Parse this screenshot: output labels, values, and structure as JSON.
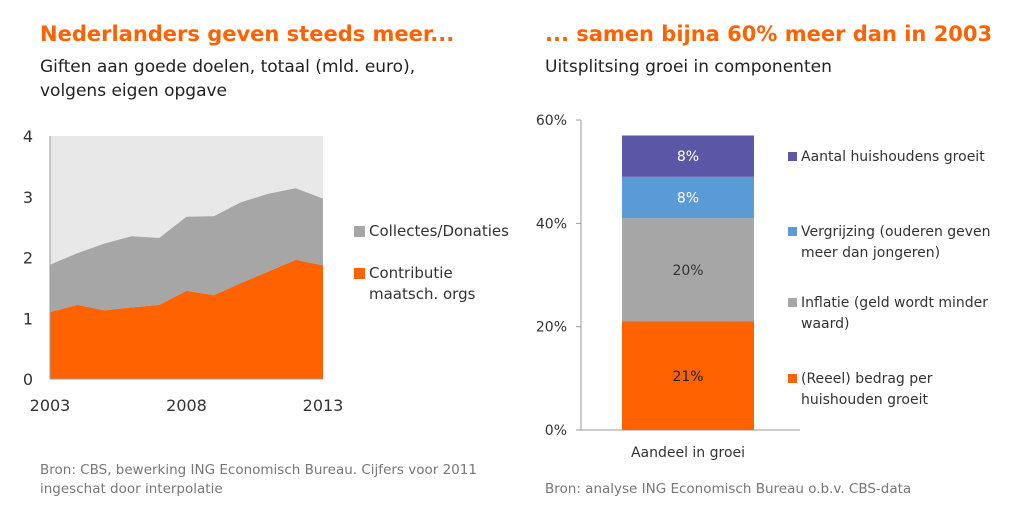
{
  "left": {
    "title": "Nederlanders geven steeds meer...",
    "subtitle_line1": "Giften aan goede doelen, totaal (mld. euro),",
    "subtitle_line2": "volgens eigen opgave",
    "source_line1": "Bron: CBS, bewerking ING Economisch Bureau. Cijfers voor 2011",
    "source_line2": "ingeschat door interpolatie"
  },
  "right": {
    "title": "... samen bijna 60% meer dan in 2003",
    "subtitle": "Uitsplitsing groei in componenten",
    "source": "Bron: analyse ING Economisch Bureau o.b.v. CBS-data"
  },
  "colors": {
    "orange": "#ff6200",
    "gray": "#a6a6a6",
    "blue": "#5b9bd5",
    "purple": "#5b57a6",
    "plot_bg": "#e8e8e8"
  },
  "chart_data": [
    {
      "type": "area",
      "stacked": true,
      "x": [
        2003,
        2004,
        2005,
        2006,
        2007,
        2008,
        2009,
        2010,
        2011,
        2012,
        2013
      ],
      "xticks": [
        "2003",
        "2008",
        "2013"
      ],
      "yticks": [
        "0",
        "1",
        "2",
        "3",
        "4"
      ],
      "ylim": [
        0,
        4
      ],
      "series": [
        {
          "name": "Contributie maatsch. orgs",
          "label_lines": [
            "Contributie",
            "maatsch. orgs"
          ],
          "color": "#ff6200",
          "values": [
            1.1,
            1.22,
            1.13,
            1.18,
            1.22,
            1.45,
            1.38,
            1.58,
            1.77,
            1.96,
            1.87
          ]
        },
        {
          "name": "Collectes/Donaties",
          "label_lines": [
            "Collectes/Donaties"
          ],
          "color": "#a6a6a6",
          "values": [
            0.78,
            0.85,
            1.1,
            1.17,
            1.1,
            1.22,
            1.3,
            1.33,
            1.28,
            1.18,
            1.1
          ]
        }
      ],
      "grid": false,
      "legend": "right"
    },
    {
      "type": "bar",
      "stacked": true,
      "categories": [
        "Aandeel in groei"
      ],
      "yticks": [
        "0%",
        "20%",
        "40%",
        "60%"
      ],
      "ylim": [
        0,
        60
      ],
      "series": [
        {
          "name": "(Reeel) bedrag per huishouden groeit",
          "label_lines": [
            "(Reeel) bedrag per",
            "huishouden groeit"
          ],
          "color": "#ff6200",
          "value": 21,
          "data_label": "21%"
        },
        {
          "name": "Inflatie (geld wordt minder waard)",
          "label_lines": [
            "Inflatie (geld wordt minder",
            "waard)"
          ],
          "color": "#a6a6a6",
          "value": 20,
          "data_label": "20%"
        },
        {
          "name": "Vergrijzing (ouderen geven meer dan jongeren)",
          "label_lines": [
            "Vergrijzing (ouderen geven",
            "meer dan jongeren)"
          ],
          "color": "#5b9bd5",
          "value": 8,
          "data_label": "8%"
        },
        {
          "name": "Aantal huishoudens groeit",
          "label_lines": [
            "Aantal huishoudens groeit"
          ],
          "color": "#5b57a6",
          "value": 8,
          "data_label": "8%"
        }
      ],
      "grid": false,
      "legend": "right"
    }
  ]
}
